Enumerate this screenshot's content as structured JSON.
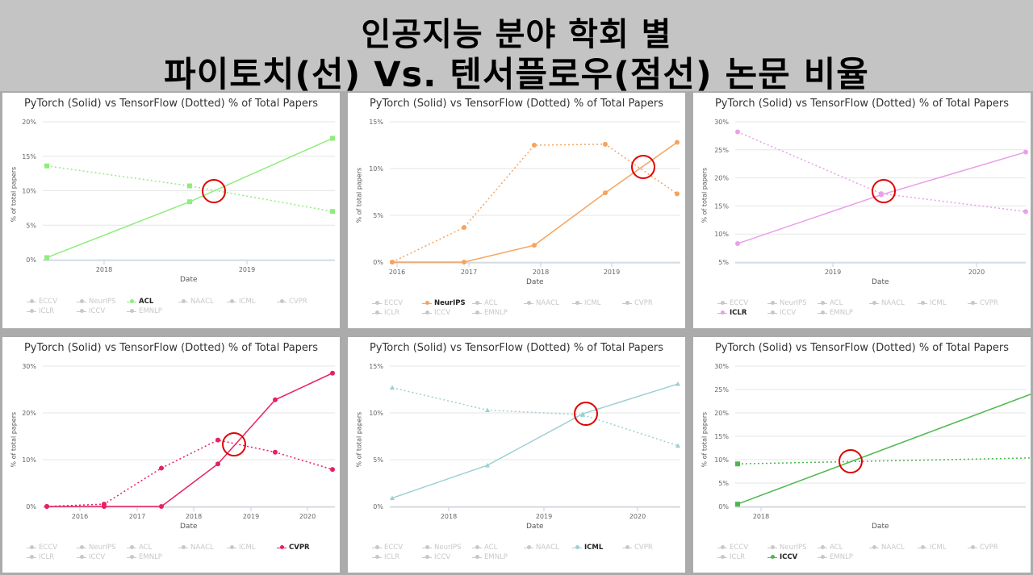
{
  "banner": {
    "line1": "인공지능 분야 학회 별",
    "line2": "파이토치(선) Vs. 텐서플로우(점선) 논문 비율"
  },
  "legend_items": [
    "ECCV",
    "NeurIPS",
    "ACL",
    "NAACL",
    "ICML",
    "CVPR",
    "ICLR",
    "ICCV",
    "EMNLP"
  ],
  "chart_data": [
    {
      "type": "line",
      "title": "PyTorch (Solid) vs TensorFlow (Dotted) % of Total Papers",
      "xlabel": "Date",
      "ylabel": "% of total papers",
      "x_ticks": [
        "2018",
        "2019"
      ],
      "y_ticks": [
        "0%",
        "5%",
        "10%",
        "15%",
        "20%"
      ],
      "ylim": [
        0,
        20
      ],
      "highlight": "ACL",
      "color": "#90ed7d",
      "marker": "square",
      "series": [
        {
          "name": "ACL",
          "style": "solid",
          "x": [
            "2017-08",
            "2018-08",
            "2019-06"
          ],
          "y": [
            0.3,
            8.4,
            17.6
          ]
        },
        {
          "name": "ACL",
          "style": "dotted",
          "x": [
            "2017-08",
            "2018-08",
            "2019-06"
          ],
          "y": [
            13.6,
            10.7,
            7.0
          ]
        }
      ]
    },
    {
      "type": "line",
      "title": "PyTorch (Solid) vs TensorFlow (Dotted) % of Total Papers",
      "xlabel": "Date",
      "ylabel": "% of total papers",
      "x_ticks": [
        "2016",
        "2017",
        "2018",
        "2019"
      ],
      "y_ticks": [
        "0%",
        "5%",
        "10%",
        "15%"
      ],
      "ylim": [
        0,
        15
      ],
      "highlight": "NeurIPS",
      "color": "#f7a35c",
      "marker": "circle",
      "series": [
        {
          "name": "NeurIPS",
          "style": "solid",
          "x": [
            "2015-12",
            "2016-12",
            "2017-12",
            "2018-12",
            "2019-12"
          ],
          "y": [
            0,
            0,
            1.8,
            7.4,
            12.8
          ]
        },
        {
          "name": "NeurIPS",
          "style": "dotted",
          "x": [
            "2015-12",
            "2016-12",
            "2017-12",
            "2018-12",
            "2019-12"
          ],
          "y": [
            0,
            3.7,
            12.5,
            12.6,
            7.3
          ]
        }
      ]
    },
    {
      "type": "line",
      "title": "PyTorch (Solid) vs TensorFlow (Dotted) % of Total Papers",
      "xlabel": "Date",
      "ylabel": "% of total papers",
      "x_ticks": [
        "2019",
        "2020"
      ],
      "y_ticks": [
        "5%",
        "10%",
        "15%",
        "20%",
        "25%",
        "30%"
      ],
      "ylim": [
        5,
        30
      ],
      "highlight": "ICLR",
      "color": "#f15c80",
      "line_color": "#e8a0e8",
      "marker": "circle",
      "series": [
        {
          "name": "ICLR",
          "style": "solid",
          "x": [
            "2018-05",
            "2019-05",
            "2020-05"
          ],
          "y": [
            8.3,
            17.0,
            24.6
          ]
        },
        {
          "name": "ICLR",
          "style": "dotted",
          "x": [
            "2018-05",
            "2019-05",
            "2020-05"
          ],
          "y": [
            28.2,
            17.2,
            14.0
          ]
        }
      ]
    },
    {
      "type": "line",
      "title": "PyTorch (Solid) vs TensorFlow (Dotted) % of Total Papers",
      "xlabel": "Date",
      "ylabel": "% of total papers",
      "x_ticks": [
        "2016",
        "2017",
        "2018",
        "2019",
        "2020"
      ],
      "y_ticks": [
        "0%",
        "10%",
        "20%",
        "30%"
      ],
      "ylim": [
        0,
        30
      ],
      "highlight": "CVPR",
      "color": "#e91e63",
      "marker": "circle",
      "series": [
        {
          "name": "CVPR",
          "style": "solid",
          "x": [
            "2015-06",
            "2016-06",
            "2017-06",
            "2018-06",
            "2019-06",
            "2020-06"
          ],
          "y": [
            0,
            0,
            0,
            9.1,
            22.8,
            28.5
          ]
        },
        {
          "name": "CVPR",
          "style": "dotted",
          "x": [
            "2015-06",
            "2016-06",
            "2017-06",
            "2018-06",
            "2019-06",
            "2020-06"
          ],
          "y": [
            0,
            0.5,
            8.2,
            14.2,
            11.6,
            7.9
          ]
        }
      ]
    },
    {
      "type": "line",
      "title": "PyTorch (Solid) vs TensorFlow (Dotted) % of Total Papers",
      "xlabel": "Date",
      "ylabel": "% of total papers",
      "x_ticks": [
        "2018",
        "2019",
        "2020"
      ],
      "y_ticks": [
        "0%",
        "5%",
        "10%",
        "15%"
      ],
      "ylim": [
        0,
        15
      ],
      "highlight": "ICML",
      "color": "#9ed0d3",
      "marker": "triangle",
      "series": [
        {
          "name": "ICML",
          "style": "solid",
          "x": [
            "2017-07",
            "2018-07",
            "2019-07",
            "2020-07"
          ],
          "y": [
            0.9,
            4.4,
            9.9,
            13.1
          ]
        },
        {
          "name": "ICML",
          "style": "dotted",
          "x": [
            "2017-07",
            "2018-07",
            "2019-07",
            "2020-07"
          ],
          "y": [
            12.7,
            10.3,
            9.8,
            6.5
          ]
        }
      ]
    },
    {
      "type": "line",
      "title": "PyTorch (Solid) vs TensorFlow (Dotted) % of Total Papers",
      "xlabel": "Date",
      "ylabel": "% of total papers",
      "x_ticks": [
        "2018"
      ],
      "y_ticks": [
        "0%",
        "5%",
        "10%",
        "15%",
        "20%",
        "25%",
        "30%"
      ],
      "ylim": [
        0,
        30
      ],
      "highlight": "ICCV",
      "color": "#4cb84c",
      "marker": "square",
      "series": [
        {
          "name": "ICCV",
          "style": "solid",
          "x": [
            "2017-10",
            "2019-10"
          ],
          "y": [
            0.5,
            24.5
          ]
        },
        {
          "name": "ICCV",
          "style": "dotted",
          "x": [
            "2017-10",
            "2019-10"
          ],
          "y": [
            9.1,
            10.4
          ]
        }
      ]
    }
  ]
}
